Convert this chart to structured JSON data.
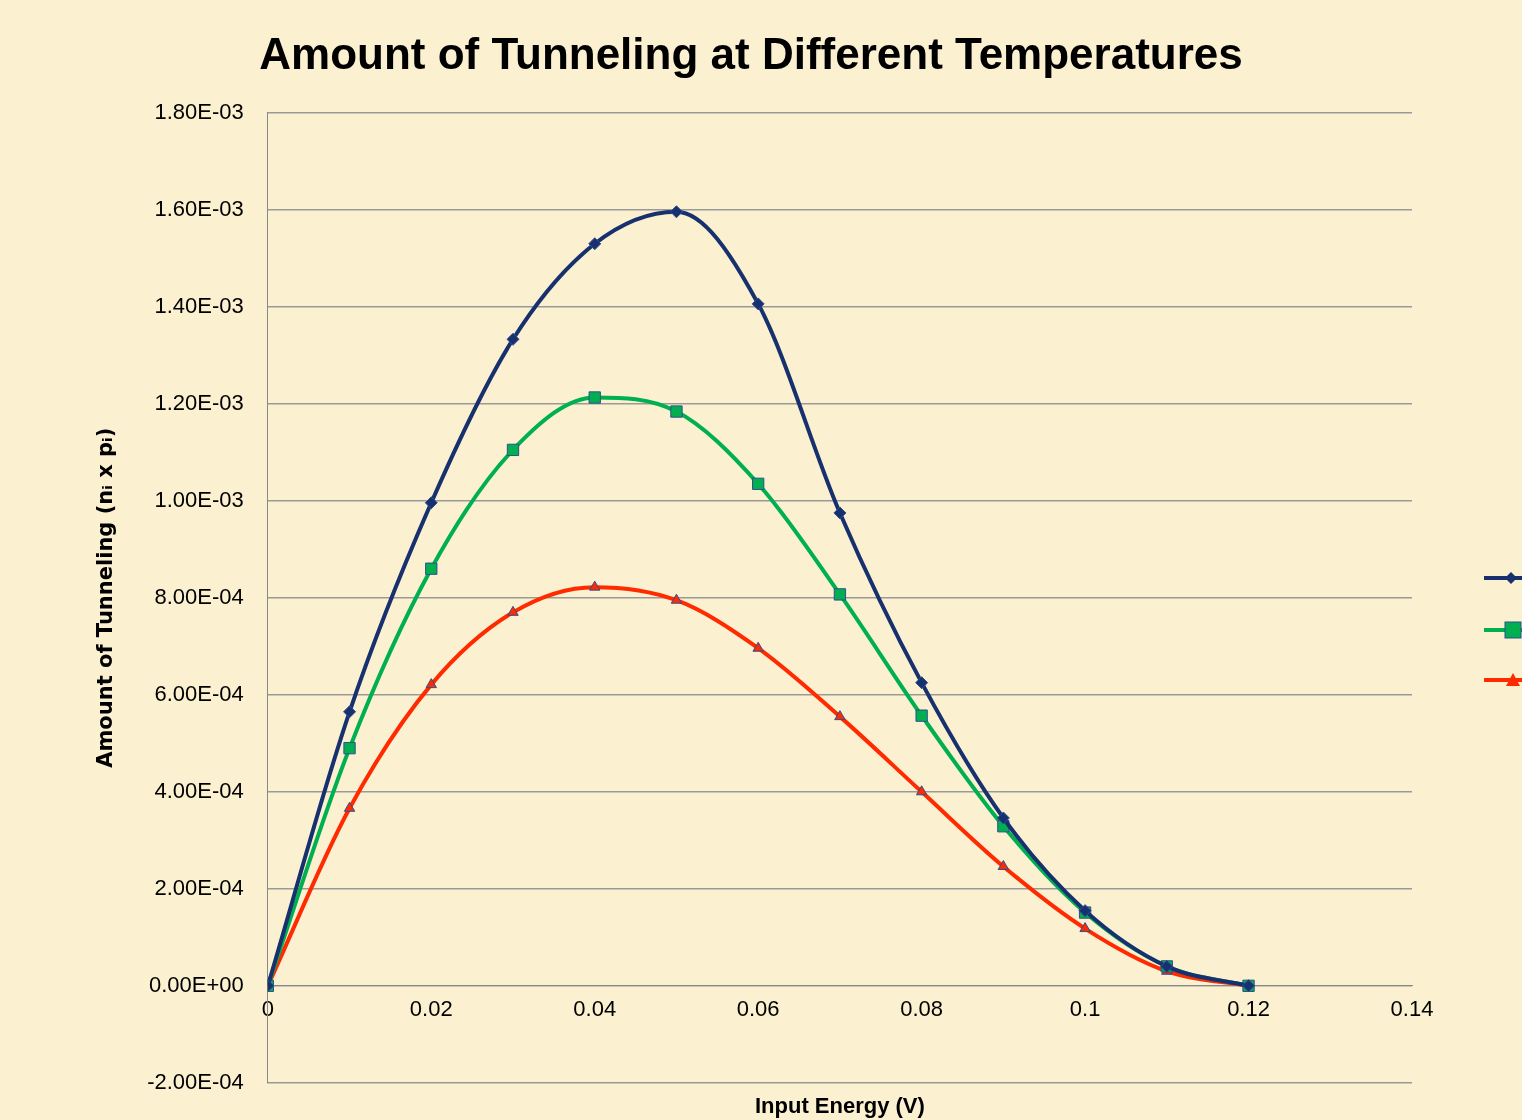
{
  "chart_data": {
    "type": "line",
    "title": "Amount of Tunneling at Different Temperatures",
    "xlabel": "Input Energy (V)",
    "ylabel": "Amount of Tunneling (nᵢ x pᵢ)",
    "x": [
      0,
      0.01,
      0.02,
      0.03,
      0.04,
      0.05,
      0.06,
      0.07,
      0.08,
      0.09,
      0.1,
      0.11,
      0.12
    ],
    "series": [
      {
        "color": "#17306e",
        "marker": "diamond",
        "values": [
          0,
          0.000565,
          0.000996,
          0.001333,
          0.00153,
          0.001596,
          0.001406,
          0.000975,
          0.000625,
          0.000346,
          0.000155,
          4e-05,
          0
        ]
      },
      {
        "color": "#00b050",
        "marker": "square",
        "values": [
          0,
          0.00049,
          0.00086,
          0.001105,
          0.001213,
          0.001184,
          0.001035,
          0.000807,
          0.000557,
          0.000329,
          0.000151,
          4e-05,
          0
        ]
      },
      {
        "color": "#ff2a00",
        "marker": "triangle",
        "values": [
          0,
          0.000366,
          0.000621,
          0.00077,
          0.000822,
          0.000795,
          0.000696,
          0.000555,
          0.0004,
          0.000246,
          0.000118,
          3e-05,
          0
        ]
      }
    ],
    "xlim": [
      0,
      0.14
    ],
    "xticks": [
      0,
      0.02,
      0.04,
      0.06,
      0.08,
      0.1,
      0.12,
      0.14
    ],
    "ylim": [
      -0.0002,
      0.0018
    ],
    "yticks": [
      {
        "value": -0.0002,
        "label": "-2.00E-04"
      },
      {
        "value": 0,
        "label": "0.00E+00"
      },
      {
        "value": 0.0002,
        "label": "2.00E-04"
      },
      {
        "value": 0.0004,
        "label": "4.00E-04"
      },
      {
        "value": 0.0006,
        "label": "6.00E-04"
      },
      {
        "value": 0.0008,
        "label": "8.00E-04"
      },
      {
        "value": 0.001,
        "label": "1.00E-03"
      },
      {
        "value": 0.0012,
        "label": "1.20E-03"
      },
      {
        "value": 0.0014,
        "label": "1.40E-03"
      },
      {
        "value": 0.0016,
        "label": "1.60E-03"
      },
      {
        "value": 0.0018,
        "label": "1.80E-03"
      }
    ],
    "grid": "y"
  }
}
